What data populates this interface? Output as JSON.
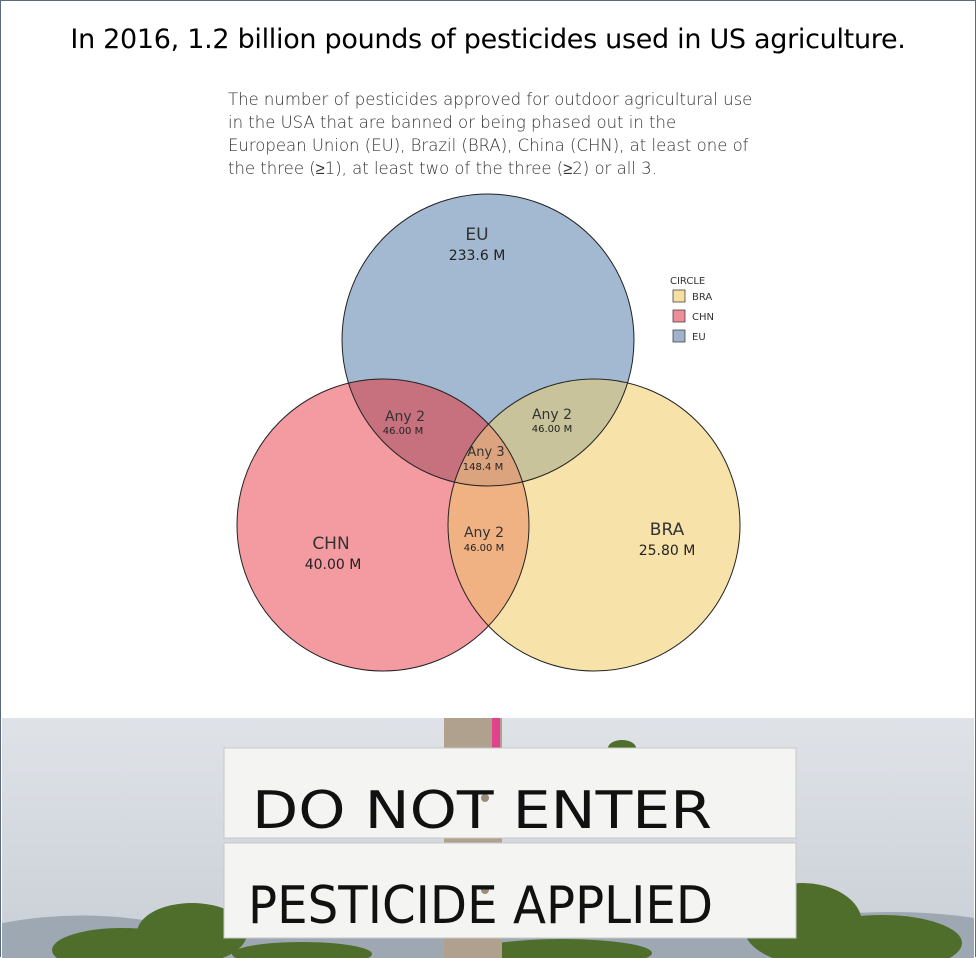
{
  "title": "In 2016, 1.2 billion pounds of pesticides used in US agriculture.",
  "subtitle": "The number of pesticides approved for outdoor agricultural use in the USA that are banned or being phased out in the European Union (EU), Brazil (BRA), China (CHN), at least one of the three (≥1), at least two of the three (≥2) or all 3.",
  "chart_data": {
    "type": "venn",
    "sets": [
      {
        "name": "EU",
        "value_label": "233.6 M",
        "color": "#8ca6c6"
      },
      {
        "name": "CHN",
        "value_label": "40.00 M",
        "color": "#f17f8a"
      },
      {
        "name": "BRA",
        "value_label": "25.80 M",
        "color": "#f5dc93"
      }
    ],
    "intersections": [
      {
        "sets": [
          "EU",
          "CHN"
        ],
        "label": "Any 2",
        "value_label": "46.00 M"
      },
      {
        "sets": [
          "EU",
          "BRA"
        ],
        "label": "Any 2",
        "value_label": "46.00 M"
      },
      {
        "sets": [
          "CHN",
          "BRA"
        ],
        "label": "Any 2",
        "value_label": "46.00 M"
      },
      {
        "sets": [
          "EU",
          "CHN",
          "BRA"
        ],
        "label": "Any 3",
        "value_label": "148.4 M"
      }
    ],
    "legend": {
      "title": "CIRCLE",
      "placement": "top-right",
      "items": [
        {
          "label": "BRA",
          "color": "#f6dfa0"
        },
        {
          "label": "CHN",
          "color": "#f08e98"
        },
        {
          "label": "EU",
          "color": "#9fb3cd"
        }
      ]
    }
  },
  "photo": {
    "sign_line1": "DO NOT ENTER",
    "sign_line2": "PESTICIDE APPLIED"
  }
}
